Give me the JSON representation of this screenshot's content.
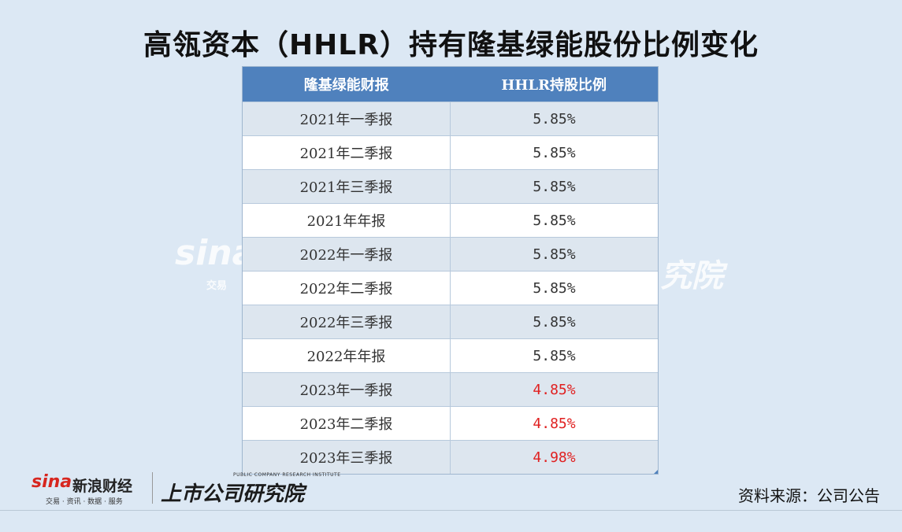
{
  "title": "高瓴资本（HHLR）持有隆基绿能股份比例变化",
  "table": {
    "headers": [
      "隆基绿能财报",
      "HHLR持股比例"
    ],
    "rows": [
      {
        "period": "2021年一季报",
        "ratio": "5.85%",
        "highlight": false
      },
      {
        "period": "2021年二季报",
        "ratio": "5.85%",
        "highlight": false
      },
      {
        "period": "2021年三季报",
        "ratio": "5.85%",
        "highlight": false
      },
      {
        "period": "2021年年报",
        "ratio": "5.85%",
        "highlight": false
      },
      {
        "period": "2022年一季报",
        "ratio": "5.85%",
        "highlight": false
      },
      {
        "period": "2022年二季报",
        "ratio": "5.85%",
        "highlight": false
      },
      {
        "period": "2022年三季报",
        "ratio": "5.85%",
        "highlight": false
      },
      {
        "period": "2022年年报",
        "ratio": "5.85%",
        "highlight": false
      },
      {
        "period": "2023年一季报",
        "ratio": "4.85%",
        "highlight": true
      },
      {
        "period": "2023年二季报",
        "ratio": "4.85%",
        "highlight": true
      },
      {
        "period": "2023年三季报",
        "ratio": "4.98%",
        "highlight": true
      }
    ]
  },
  "watermark": {
    "left": "sina",
    "left_sub": "交易",
    "right": "究院"
  },
  "footer": {
    "sina_logo": "sina",
    "sina_name": "新浪财经",
    "sina_sub": "交易 · 资讯 · 数据 · 服务",
    "institute_name": "上市公司研究院",
    "institute_en": "PUBLIC COMPANY RESEARCH INSTITUTE",
    "source": "资料来源：公司公告"
  },
  "colors": {
    "background": "#dce8f4",
    "header": "#4f81bd",
    "highlight_text": "#e02020"
  }
}
